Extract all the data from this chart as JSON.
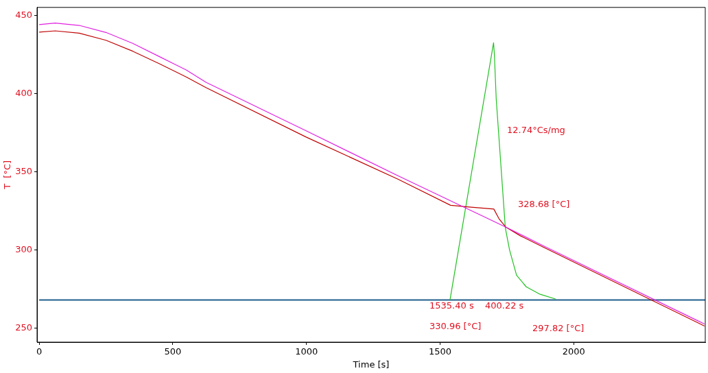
{
  "chart_data": {
    "type": "line",
    "xlabel": "Time [s]",
    "ylabel": "T  [°C]",
    "xlim": [
      -8,
      2492
    ],
    "xticks": [
      0,
      500,
      1000,
      1500,
      2000
    ],
    "ylim": [
      241,
      455
    ],
    "yticks": [
      250,
      300,
      350,
      400,
      450
    ],
    "grid": false,
    "legend": false,
    "marker": "none",
    "series": [
      {
        "color": "#e020e0",
        "x": [
          0,
          60,
          150,
          250,
          350,
          450,
          550,
          624,
          1000,
          1342,
          1746,
          1889,
          2489
        ],
        "values": [
          444,
          445,
          443.5,
          439,
          432,
          423.5,
          415,
          407.1,
          376,
          347.4,
          314.5,
          302.4,
          252.6
        ]
      },
      {
        "color": "#c00000",
        "x": [
          0,
          60,
          150,
          250,
          350,
          450,
          550,
          624,
          1000,
          1342,
          1539,
          1600,
          1701,
          1720,
          1746,
          1800,
          1889,
          2489
        ],
        "values": [
          439.2,
          440,
          438.5,
          434,
          427,
          419,
          410.5,
          403.7,
          372,
          345.2,
          328.5,
          327.5,
          326.1,
          320,
          314.5,
          309,
          301.5,
          251.3
        ]
      },
      {
        "color": "#20c020",
        "x": [
          1537,
          1700,
          1703,
          1710,
          1744,
          1760,
          1786,
          1822,
          1874,
          1933
        ],
        "values": [
          268,
          432.4,
          425,
          396.3,
          314,
          299.8,
          283.8,
          276.4,
          271.6,
          268.5
        ]
      }
    ],
    "ref_lines": [
      {
        "axis": "y",
        "value": 268,
        "color": "#1f5f8b"
      }
    ],
    "annotations": [
      "12.74°Cs/mg",
      "328.68 [°C]",
      "1535.40 s",
      "400.22 s",
      "330.96 [°C]",
      "297.82 [°C]"
    ]
  }
}
